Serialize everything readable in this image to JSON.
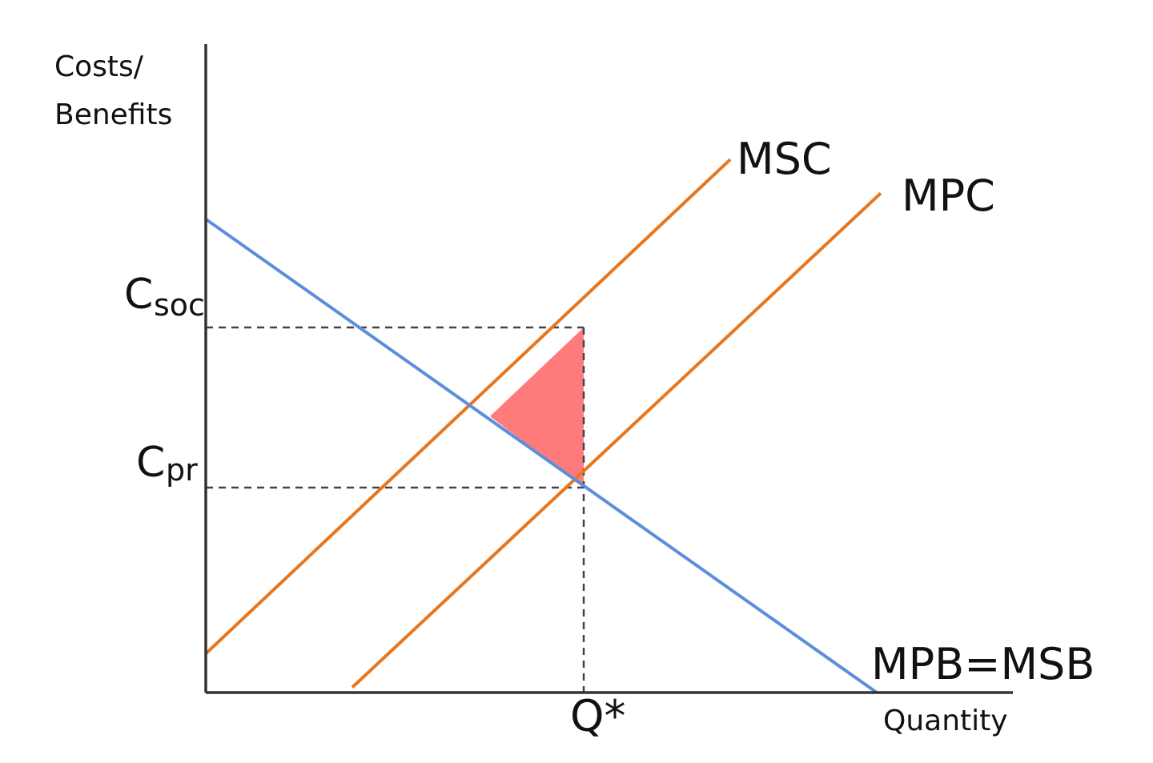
{
  "axes": {
    "y_label_line1": "Costs/",
    "y_label_line2": "Benefits",
    "x_label": "Quantity"
  },
  "labels": {
    "msc": "MSC",
    "mpc": "MPC",
    "mpb_msb": "MPB=MSB",
    "q_star": "Q*",
    "c_soc_main": "C",
    "c_soc_sub": "soc",
    "c_pr_main": "C",
    "c_pr_sub": "pr"
  },
  "colors": {
    "supply": "#e8761c",
    "demand": "#5b8fd9",
    "deadweight": "#ff7b7b",
    "axis": "#333333",
    "guides": "#444444"
  },
  "chart_data": {
    "type": "line",
    "title": "",
    "xlabel": "Quantity",
    "ylabel": "Costs/ Benefits",
    "series": [
      {
        "name": "MSC",
        "points": [
          [
            0,
            0.06
          ],
          [
            0.655,
            0.822
          ]
        ]
      },
      {
        "name": "MPC",
        "points": [
          [
            0.183,
            0.008
          ],
          [
            0.843,
            0.77
          ]
        ]
      },
      {
        "name": "MPB=MSB",
        "points": [
          [
            0,
            0.73
          ],
          [
            0.838,
            0
          ]
        ]
      }
    ],
    "markers": {
      "q_star": 0.472,
      "c_soc": 0.563,
      "c_pr": 0.316
    },
    "shaded_region": [
      [
        0.355,
        0.426
      ],
      [
        0.472,
        0.563
      ],
      [
        0.472,
        0.316
      ]
    ],
    "xlim": [
      0,
      1
    ],
    "ylim": [
      0,
      1
    ]
  }
}
